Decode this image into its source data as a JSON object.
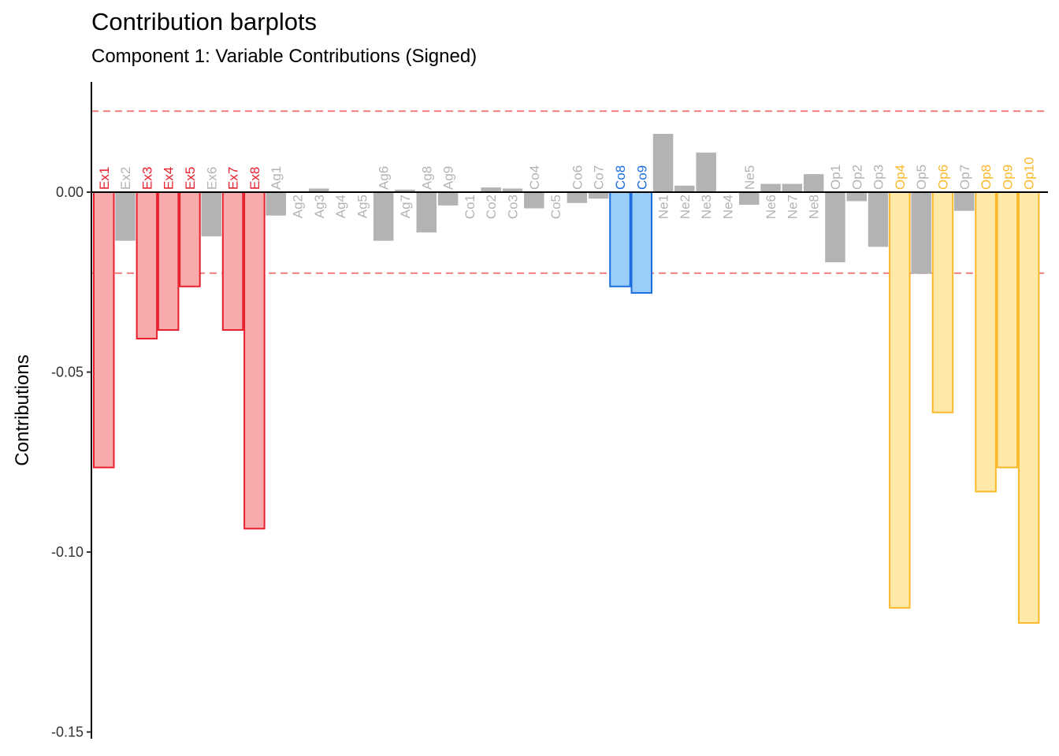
{
  "title": "Contribution barplots",
  "subtitle": "Component 1: Variable Contributions (Signed)",
  "colors": {
    "Ex": {
      "fill": "#F8ABAD",
      "stroke": "#E8202E",
      "text": "#E8202E"
    },
    "Co": {
      "fill": "#9ACEF8",
      "stroke": "#1C6EE0",
      "text": "#1C6EE0"
    },
    "Op": {
      "fill": "#FFE9A8",
      "stroke": "#FBB82A",
      "text": "#FBB82A"
    },
    "gray": {
      "fill": "#B3B3B3",
      "stroke": "none",
      "text": "#B3B3B3"
    },
    "threshold": "#F08080"
  },
  "chart_data": {
    "type": "bar",
    "title": "Contribution barplots",
    "subtitle": "Component 1: Variable Contributions (Signed)",
    "xlabel": "",
    "ylabel": "Contributions",
    "ylim": [
      -0.15,
      0.025
    ],
    "yticks": [
      0.0,
      -0.05,
      -0.1,
      -0.15
    ],
    "ytick_labels": [
      "0.00",
      "-0.05",
      "-0.10",
      "-0.15"
    ],
    "threshold_lines": [
      0.0225,
      -0.0225
    ],
    "categories": [
      "Ex1",
      "Ex2",
      "Ex3",
      "Ex4",
      "Ex5",
      "Ex6",
      "Ex7",
      "Ex8",
      "Ag1",
      "Ag2",
      "Ag3",
      "Ag4",
      "Ag5",
      "Ag6",
      "Ag7",
      "Ag8",
      "Ag9",
      "Co1",
      "Co2",
      "Co3",
      "Co4",
      "Co5",
      "Co6",
      "Co7",
      "Co8",
      "Co9",
      "Ne1",
      "Ne2",
      "Ne3",
      "Ne4",
      "Ne5",
      "Ne6",
      "Ne7",
      "Ne8",
      "Op1",
      "Op2",
      "Op3",
      "Op4",
      "Op5",
      "Op6",
      "Op7",
      "Op8",
      "Op9",
      "Op10"
    ],
    "values": [
      -0.0765,
      -0.0135,
      -0.0407,
      -0.0383,
      -0.0262,
      -0.0123,
      -0.0383,
      -0.0935,
      -0.0065,
      0.0,
      0.001,
      0.0,
      0.0,
      -0.0135,
      0.0007,
      -0.0112,
      -0.0037,
      0.0,
      0.0013,
      0.001,
      -0.0045,
      0.0,
      -0.003,
      -0.0018,
      -0.0262,
      -0.028,
      0.0162,
      0.0018,
      0.011,
      0.0,
      -0.0035,
      0.0023,
      0.0023,
      0.005,
      -0.0195,
      -0.0025,
      -0.0152,
      -0.1155,
      -0.0227,
      -0.0612,
      -0.0052,
      -0.0832,
      -0.0765,
      -0.1197
    ],
    "highlight": [
      "Ex",
      "gray",
      "Ex",
      "Ex",
      "Ex",
      "gray",
      "Ex",
      "Ex",
      "gray",
      "gray",
      "gray",
      "gray",
      "gray",
      "gray",
      "gray",
      "gray",
      "gray",
      "gray",
      "gray",
      "gray",
      "gray",
      "gray",
      "gray",
      "gray",
      "Co",
      "Co",
      "gray",
      "gray",
      "gray",
      "gray",
      "gray",
      "gray",
      "gray",
      "gray",
      "gray",
      "gray",
      "gray",
      "Op",
      "gray",
      "Op",
      "gray",
      "Op",
      "Op",
      "Op"
    ]
  }
}
